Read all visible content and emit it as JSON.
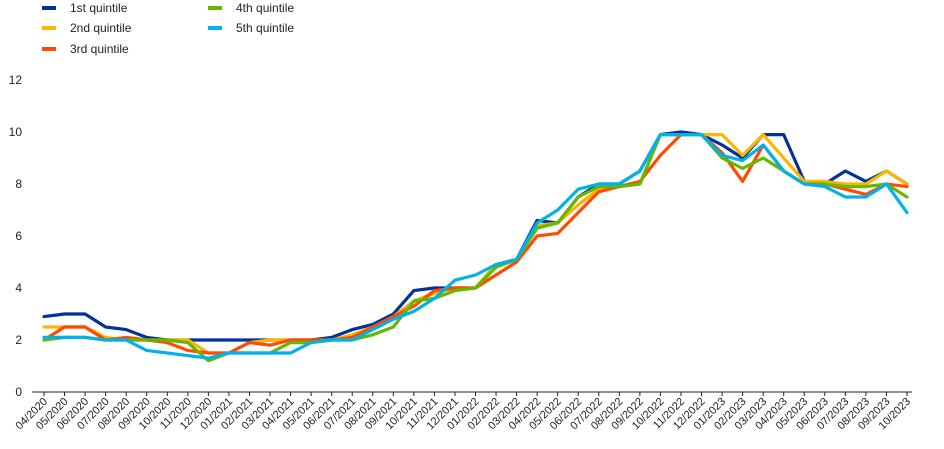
{
  "chart_data": {
    "type": "line",
    "title": "",
    "xlabel": "",
    "ylabel": "",
    "ylim": [
      0,
      12
    ],
    "yticks": [
      0,
      2,
      4,
      6,
      8,
      10,
      12
    ],
    "grid": false,
    "legend_position": "top-left",
    "categories": [
      "04/2020",
      "05/2020",
      "06/2020",
      "07/2020",
      "08/2020",
      "09/2020",
      "10/2020",
      "11/2020",
      "12/2020",
      "01/2021",
      "02/2021",
      "03/2021",
      "04/2021",
      "05/2021",
      "06/2021",
      "07/2021",
      "08/2021",
      "09/2021",
      "10/2021",
      "11/2021",
      "12/2021",
      "01/2022",
      "02/2022",
      "03/2022",
      "04/2022",
      "05/2022",
      "06/2022",
      "07/2022",
      "08/2022",
      "09/2022",
      "10/2022",
      "11/2022",
      "12/2022",
      "01/2023",
      "02/2023",
      "03/2023",
      "04/2023",
      "05/2023",
      "06/2023",
      "07/2023",
      "08/2023",
      "09/2023",
      "10/2023"
    ],
    "series": [
      {
        "name": "1st quintile",
        "color": "#003299",
        "values": [
          2.9,
          3.0,
          3.0,
          2.5,
          2.4,
          2.1,
          2.0,
          2.0,
          2.0,
          2.0,
          2.0,
          2.0,
          2.0,
          2.0,
          2.1,
          2.4,
          2.6,
          3.0,
          3.9,
          4.0,
          4.0,
          4.0,
          4.9,
          5.1,
          6.6,
          6.5,
          7.5,
          8.0,
          8.0,
          8.5,
          9.9,
          10.0,
          9.9,
          9.5,
          9.0,
          9.9,
          9.9,
          8.1,
          8.0,
          8.5,
          8.1,
          8.5,
          8.0
        ]
      },
      {
        "name": "2nd quintile",
        "color": "#FFB400",
        "values": [
          2.5,
          2.5,
          2.5,
          2.1,
          2.0,
          2.0,
          2.0,
          2.0,
          1.5,
          1.5,
          1.9,
          2.0,
          2.0,
          2.0,
          2.0,
          2.2,
          2.5,
          2.9,
          3.5,
          3.8,
          4.0,
          4.0,
          4.9,
          5.1,
          6.4,
          6.5,
          7.2,
          7.8,
          7.9,
          8.0,
          9.9,
          9.9,
          9.9,
          9.9,
          9.1,
          9.9,
          9.0,
          8.1,
          8.1,
          8.0,
          8.0,
          8.5,
          8.0
        ]
      },
      {
        "name": "3rd quintile",
        "color": "#FF4B00",
        "values": [
          2.0,
          2.5,
          2.5,
          2.0,
          2.1,
          2.0,
          1.9,
          1.6,
          1.5,
          1.5,
          1.9,
          1.8,
          2.0,
          2.0,
          2.0,
          2.1,
          2.5,
          2.9,
          3.3,
          3.9,
          4.0,
          4.0,
          4.5,
          5.0,
          6.0,
          6.1,
          6.9,
          7.7,
          7.9,
          8.1,
          9.1,
          9.9,
          9.9,
          9.2,
          8.1,
          9.5,
          8.5,
          8.0,
          8.0,
          7.8,
          7.6,
          8.0,
          7.9
        ]
      },
      {
        "name": "4th quintile",
        "color": "#65B800",
        "values": [
          2.0,
          2.1,
          2.1,
          2.0,
          2.0,
          2.0,
          2.0,
          1.9,
          1.2,
          1.5,
          1.5,
          1.5,
          1.9,
          1.9,
          2.0,
          2.0,
          2.2,
          2.5,
          3.5,
          3.6,
          3.9,
          4.0,
          4.8,
          5.1,
          6.3,
          6.5,
          7.5,
          7.9,
          7.9,
          8.0,
          9.9,
          9.9,
          9.9,
          9.0,
          8.6,
          9.0,
          8.5,
          8.0,
          8.0,
          7.9,
          7.9,
          8.0,
          7.5
        ]
      },
      {
        "name": "5th quintile",
        "color": "#00B1EA",
        "values": [
          2.1,
          2.1,
          2.1,
          2.0,
          2.0,
          1.6,
          1.5,
          1.4,
          1.3,
          1.5,
          1.5,
          1.5,
          1.5,
          1.9,
          2.0,
          2.0,
          2.4,
          2.8,
          3.1,
          3.6,
          4.3,
          4.5,
          4.9,
          5.1,
          6.5,
          7.0,
          7.8,
          8.0,
          8.0,
          8.5,
          9.9,
          9.9,
          9.9,
          9.1,
          8.9,
          9.5,
          8.5,
          8.0,
          7.9,
          7.5,
          7.5,
          8.0,
          6.9
        ]
      }
    ]
  }
}
